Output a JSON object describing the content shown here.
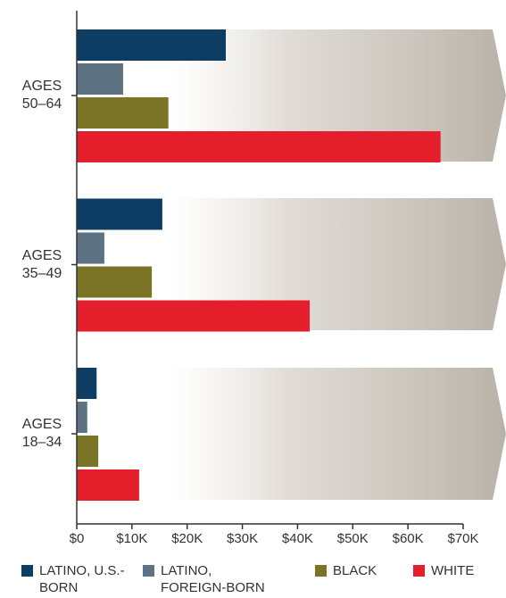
{
  "chart_data": {
    "type": "barh",
    "categories": [
      "AGES 50–64",
      "AGES 35–49",
      "AGES 18–34"
    ],
    "series": [
      {
        "name": "LATINO, U.S.-BORN",
        "color": "#0d3d63",
        "values": [
          27000,
          15500,
          3600
        ]
      },
      {
        "name": "LATINO, FOREIGN-BORN",
        "color": "#5d7283",
        "values": [
          8400,
          5000,
          1900
        ]
      },
      {
        "name": "BLACK",
        "color": "#7b7426",
        "values": [
          16600,
          13600,
          3900
        ]
      },
      {
        "name": "WHITE",
        "color": "#e41e2b",
        "values": [
          65900,
          42200,
          11300
        ]
      }
    ],
    "xlim": [
      0,
      70000
    ],
    "xticks": [
      {
        "value": 0,
        "label": "$0"
      },
      {
        "value": 10000,
        "label": "$10K"
      },
      {
        "value": 20000,
        "label": "$20K"
      },
      {
        "value": 30000,
        "label": "$30K"
      },
      {
        "value": 40000,
        "label": "$40K"
      },
      {
        "value": 50000,
        "label": "$50K"
      },
      {
        "value": 60000,
        "label": "$60K"
      },
      {
        "value": 70000,
        "label": "$70K"
      }
    ]
  }
}
